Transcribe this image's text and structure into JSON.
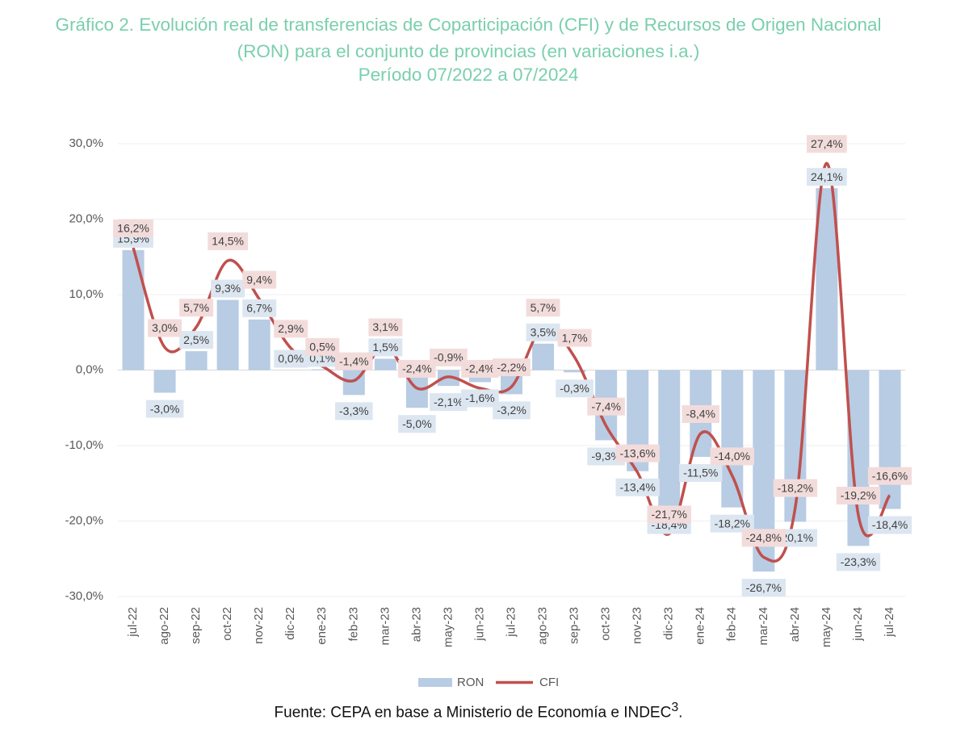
{
  "chart_data": {
    "type": "bar-line",
    "title": "Gráfico 2. Evolución real de transferencias de Coparticipación (CFI) y de Recursos de Origen Nacional (RON) para el conjunto de provincias (en variaciones i.a.)",
    "subtitle": "Período 07/2022 a 07/2024",
    "source": "Fuente: CEPA en base a Ministerio de Economía e INDEC",
    "source_note": "3",
    "categories": [
      "jul-22",
      "ago-22",
      "sep-22",
      "oct-22",
      "nov-22",
      "dic-22",
      "ene-23",
      "feb-23",
      "mar-23",
      "abr-23",
      "may-23",
      "jun-23",
      "jul-23",
      "ago-23",
      "sep-23",
      "oct-23",
      "nov-23",
      "dic-23",
      "ene-24",
      "feb-24",
      "mar-24",
      "abr-24",
      "may-24",
      "jun-24",
      "jul-24"
    ],
    "series": [
      {
        "name": "RON",
        "type": "bar",
        "color": "#b8cce4",
        "label_bg": "#dce6f1",
        "values": [
          15.9,
          -3.0,
          2.5,
          9.3,
          6.7,
          0.0,
          0.1,
          -3.3,
          1.5,
          -5.0,
          -2.1,
          -1.6,
          -3.2,
          3.5,
          -0.3,
          -9.3,
          -13.4,
          -18.4,
          -11.5,
          -18.2,
          -26.7,
          -20.1,
          24.1,
          -23.3,
          -18.4
        ],
        "value_labels": [
          "15,9%",
          "-3,0%",
          "2,5%",
          "9,3%",
          "6,7%",
          "0,0%",
          "0,1%",
          "-3,3%",
          "1,5%",
          "-5,0%",
          "-2,1%",
          "-1,6%",
          "-3,2%",
          "3,5%",
          "-0,3%",
          "-9,3%",
          "-13,4%",
          "-18,4%",
          "-11,5%",
          "-18,2%",
          "-26,7%",
          "-20,1%",
          "24,1%",
          "-23,3%",
          "-18,4%"
        ]
      },
      {
        "name": "CFI",
        "type": "line",
        "color": "#c0504d",
        "label_bg": "#f2dcdb",
        "values": [
          16.2,
          3.0,
          5.7,
          14.5,
          9.4,
          2.9,
          0.5,
          -1.4,
          3.1,
          -2.4,
          -0.9,
          -2.4,
          -2.2,
          5.7,
          1.7,
          -7.4,
          -13.6,
          -21.7,
          -8.4,
          -14.0,
          -24.8,
          -18.2,
          27.4,
          -19.2,
          -16.6
        ],
        "value_labels": [
          "16,2%",
          "3,0%",
          "5,7%",
          "14,5%",
          "9,4%",
          "2,9%",
          "0,5%",
          "-1,4%",
          "3,1%",
          "-2,4%",
          "-0,9%",
          "-2,4%",
          "-2,2%",
          "5,7%",
          "1,7%",
          "-7,4%",
          "-13,6%",
          "-21,7%",
          "-8,4%",
          "-14,0%",
          "-24,8%",
          "-18,2%",
          "27,4%",
          "-19,2%",
          "-16,6%"
        ]
      }
    ],
    "ylim": [
      -30,
      30
    ],
    "yticks": [
      {
        "value": -30,
        "label": "-30,0%"
      },
      {
        "value": -20,
        "label": "-20,0%"
      },
      {
        "value": -10,
        "label": "-10,0%"
      },
      {
        "value": 0,
        "label": "0,0%"
      },
      {
        "value": 10,
        "label": "10,0%"
      },
      {
        "value": 20,
        "label": "20,0%"
      },
      {
        "value": 30,
        "label": "30,0%"
      }
    ],
    "grid": true,
    "legend": "bottom"
  }
}
